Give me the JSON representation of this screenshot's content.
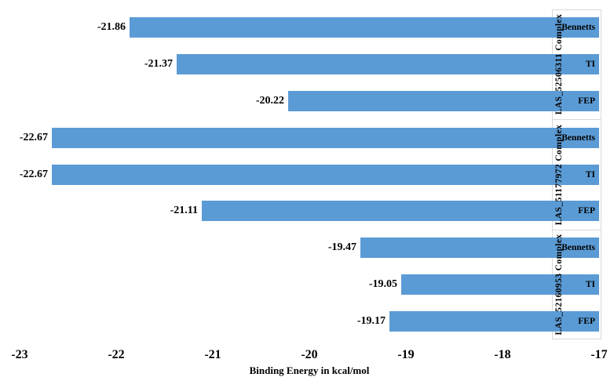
{
  "chart_data": {
    "type": "bar",
    "orientation": "horizontal",
    "title": "",
    "xlabel": "Binding Energy in kcal/mol",
    "ylabel": "",
    "xlim": [
      -23,
      -17
    ],
    "bar_anchor": -17,
    "grid": false,
    "legend": false,
    "bar_color": "#5b9bd5",
    "box_border_color": "#d9d9d9",
    "text_color": "#000000",
    "x_ticks": [
      "-23",
      "-22",
      "-21",
      "-20",
      "-19",
      "-18",
      "-17"
    ],
    "x_tick_values": [
      -23,
      -22,
      -21,
      -20,
      -19,
      -18,
      -17
    ],
    "groups": [
      {
        "name": "LAS_52506311 Complex",
        "bars": [
          {
            "method": "Bennetts",
            "value": -21.86,
            "display": "-21.86"
          },
          {
            "method": "TI",
            "value": -21.37,
            "display": "-21.37"
          },
          {
            "method": "FEP",
            "value": -20.22,
            "display": "-20.22"
          }
        ]
      },
      {
        "name": "LAS_51177972 Complex",
        "bars": [
          {
            "method": "Bennetts",
            "value": -22.67,
            "display": "-22.67"
          },
          {
            "method": "TI",
            "value": -22.67,
            "display": "-22.67"
          },
          {
            "method": "FEP",
            "value": -21.11,
            "display": "-21.11"
          }
        ]
      },
      {
        "name": "LAS_52160953 Complex",
        "bars": [
          {
            "method": "Bennetts",
            "value": -19.47,
            "display": "-19.47"
          },
          {
            "method": "TI",
            "value": -19.05,
            "display": "-19.05"
          },
          {
            "method": "FEP",
            "value": -19.17,
            "display": "-19.17"
          }
        ]
      }
    ]
  }
}
